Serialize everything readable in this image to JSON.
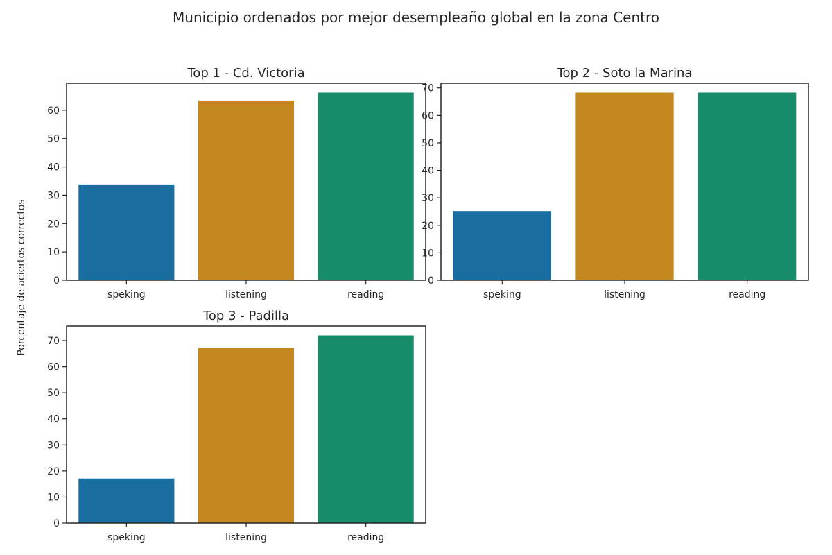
{
  "figure": {
    "title": "Municipio ordenados por mejor desempleaño global en la zona Centro",
    "ylabel": "Porcentaje de aciertos correctos"
  },
  "chart_data": [
    {
      "type": "bar",
      "title": "Top  1 - Cd. Victoria",
      "categories": [
        "speking",
        "listening",
        "reading"
      ],
      "values": [
        33.8,
        63.4,
        66.2
      ],
      "colors": [
        "#1a6e9f",
        "#c3881f",
        "#178c6b"
      ],
      "ylim": [
        0,
        69.5
      ],
      "yticks": [
        0,
        10,
        20,
        30,
        40,
        50,
        60
      ],
      "grid": false,
      "legend": "none"
    },
    {
      "type": "bar",
      "title": "Top  2 - Soto la Marina",
      "categories": [
        "speking",
        "listening",
        "reading"
      ],
      "values": [
        25.2,
        68.3,
        68.3
      ],
      "colors": [
        "#1a6e9f",
        "#c3881f",
        "#178c6b"
      ],
      "ylim": [
        0,
        71.7
      ],
      "yticks": [
        0,
        10,
        20,
        30,
        40,
        50,
        60,
        70
      ],
      "grid": false,
      "legend": "none"
    },
    {
      "type": "bar",
      "title": "Top  3 - Padilla",
      "categories": [
        "speking",
        "listening",
        "reading"
      ],
      "values": [
        17.1,
        67.2,
        72.0
      ],
      "colors": [
        "#1a6e9f",
        "#c3881f",
        "#178c6b"
      ],
      "ylim": [
        0,
        75.6
      ],
      "yticks": [
        0,
        10,
        20,
        30,
        40,
        50,
        60,
        70
      ],
      "grid": false,
      "legend": "none"
    }
  ]
}
